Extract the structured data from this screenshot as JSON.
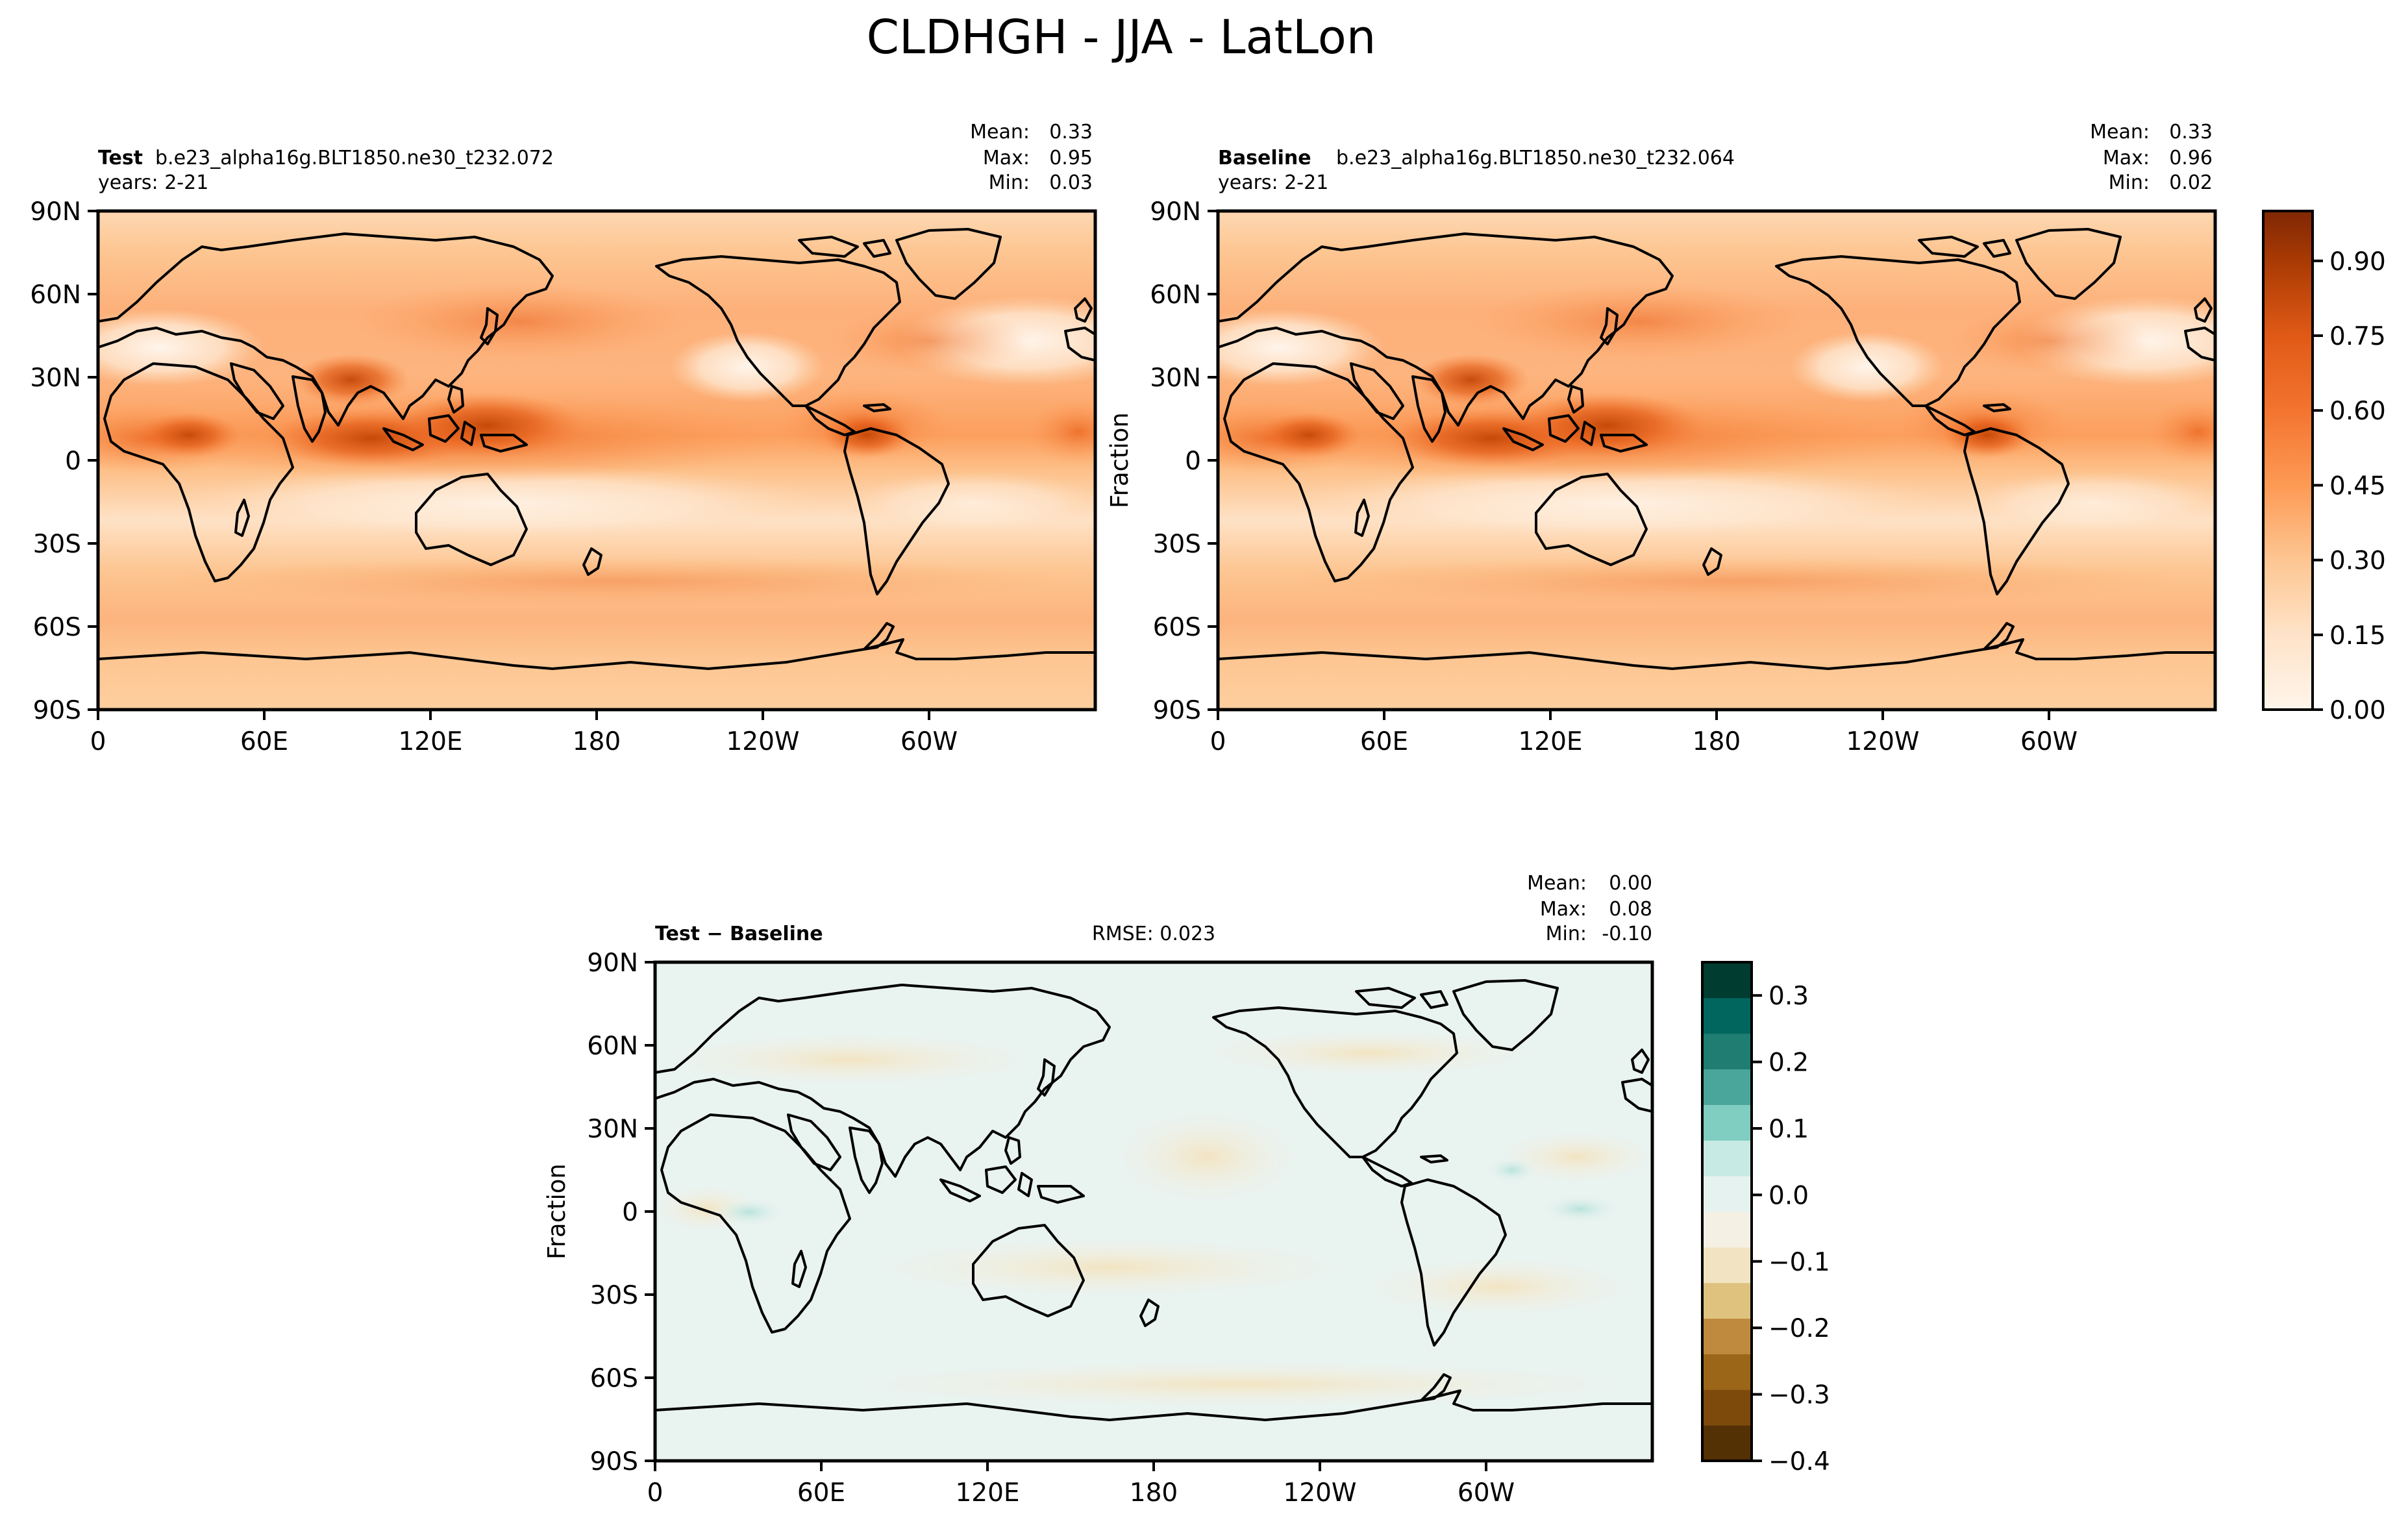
{
  "figure": {
    "title": "CLDHGH - JJA - LatLon"
  },
  "colors": {
    "oranges": [
      "#fff5eb",
      "#fee8d2",
      "#fdd8b3",
      "#fdc692",
      "#fdad6e",
      "#fd9a54",
      "#f77f3a",
      "#ec6a26",
      "#e05a16",
      "#cf4a0a",
      "#b74003",
      "#9a3503",
      "#7f2704"
    ],
    "brbg": [
      "#543005",
      "#7d4a0c",
      "#9c6619",
      "#bf8a3e",
      "#dfc27d",
      "#f2e4c2",
      "#f5f0e4",
      "#e6f2ef",
      "#c7eae5",
      "#80cdc1",
      "#4aa69b",
      "#1f7d72",
      "#01665e",
      "#003c30"
    ],
    "land_outline": "#000000"
  },
  "chart_data": [
    {
      "type": "heatmap",
      "id": "test",
      "label": "Test",
      "case": "b.e23_alpha16g.BLT1850.ne30_t232.072",
      "years": "years: 2-21",
      "stats": {
        "mean_label": "Mean:",
        "mean": "0.33",
        "max_label": "Max:",
        "max": "0.95",
        "min_label": "Min:",
        "min": "0.03"
      },
      "ylabel": "",
      "x_ticks": [
        "0",
        "60E",
        "120E",
        "180",
        "120W",
        "60W"
      ],
      "y_ticks": [
        "90N",
        "60N",
        "30N",
        "0",
        "30S",
        "60S",
        "90S"
      ],
      "xlim": [
        0,
        360
      ],
      "ylim": [
        -90,
        90
      ],
      "colormap": "Oranges",
      "value_range": [
        0,
        1
      ],
      "field_features": [
        {
          "feature": "ITCZ / west Pacific warm pool",
          "lon": 140,
          "lat": 8,
          "value": 0.9
        },
        {
          "feature": "Indian monsoon / Bay of Bengal",
          "lon": 90,
          "lat": 15,
          "value": 0.85
        },
        {
          "feature": "Tibetan plateau",
          "lon": 95,
          "lat": 32,
          "value": 0.75
        },
        {
          "feature": "Central America / east Pacific ITCZ",
          "lon": 275,
          "lat": 10,
          "value": 0.75
        },
        {
          "feature": "Central Africa",
          "lon": 15,
          "lat": 8,
          "value": 0.72
        },
        {
          "feature": "Saharan minimum",
          "lon": 20,
          "lat": 25,
          "value": 0.1
        },
        {
          "feature": "Southern subtropics minimum",
          "lon": 160,
          "lat": -20,
          "value": 0.12
        },
        {
          "feature": "Southern ocean storm track",
          "lon": 200,
          "lat": -50,
          "value": 0.4
        }
      ]
    },
    {
      "type": "heatmap",
      "id": "baseline",
      "label": "Baseline",
      "case": "b.e23_alpha16g.BLT1850.ne30_t232.064",
      "years": "years: 2-21",
      "stats": {
        "mean_label": "Mean:",
        "mean": "0.33",
        "max_label": "Max:",
        "max": "0.96",
        "min_label": "Min:",
        "min": "0.02"
      },
      "ylabel": "Fraction",
      "x_ticks": [
        "0",
        "60E",
        "120E",
        "180",
        "120W",
        "60W"
      ],
      "y_ticks": [
        "90N",
        "60N",
        "30N",
        "0",
        "30S",
        "60S",
        "90S"
      ],
      "xlim": [
        0,
        360
      ],
      "ylim": [
        -90,
        90
      ],
      "colormap": "Oranges",
      "value_range": [
        0,
        1
      ],
      "colorbar_ticks": [
        "0.00",
        "0.15",
        "0.30",
        "0.45",
        "0.60",
        "0.75",
        "0.90"
      ],
      "colorbar_tick_values": [
        0,
        0.15,
        0.3,
        0.45,
        0.6,
        0.75,
        0.9
      ],
      "colorbar_range": [
        0,
        1
      ]
    },
    {
      "type": "heatmap",
      "id": "diff",
      "label": "Test − Baseline",
      "rmse": "RMSE: 0.023",
      "stats": {
        "mean_label": "Mean:",
        "mean": "0.00",
        "max_label": "Max:",
        "max": "0.08",
        "min_label": "Min:",
        "min": "-0.10"
      },
      "ylabel": "Fraction",
      "x_ticks": [
        "0",
        "60E",
        "120E",
        "180",
        "120W",
        "60W"
      ],
      "y_ticks": [
        "90N",
        "60N",
        "30N",
        "0",
        "30S",
        "60S",
        "90S"
      ],
      "xlim": [
        0,
        360
      ],
      "ylim": [
        -90,
        90
      ],
      "colormap": "BrBG",
      "value_range": [
        -0.4,
        0.35
      ],
      "colorbar_ticks": [
        "0.3",
        "0.2",
        "0.1",
        "0.0",
        "−0.1",
        "−0.2",
        "−0.3",
        "−0.4"
      ],
      "colorbar_tick_values": [
        0.3,
        0.2,
        0.1,
        0.0,
        -0.1,
        -0.2,
        -0.3,
        -0.4
      ],
      "colorbar_range": [
        -0.4,
        0.35
      ],
      "field_features": [
        {
          "feature": "North Pacific negative patch",
          "lon": 195,
          "lat": 22,
          "value": -0.05
        },
        {
          "feature": "East Africa positive patch",
          "lon": 35,
          "lat": 2,
          "value": 0.07
        },
        {
          "feature": "Tropical Atlantic positive patch",
          "lon": 340,
          "lat": 3,
          "value": 0.06
        }
      ]
    }
  ]
}
